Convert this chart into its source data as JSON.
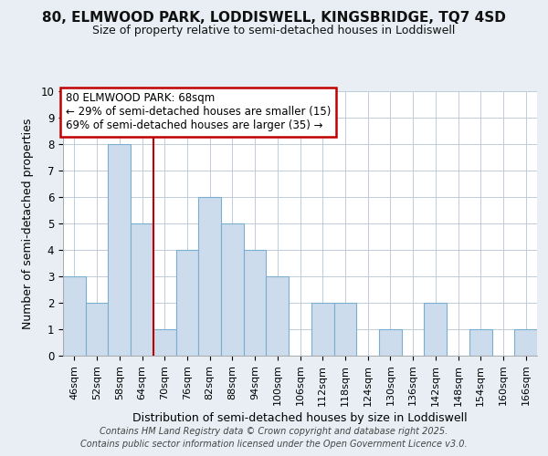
{
  "title": "80, ELMWOOD PARK, LODDISWELL, KINGSBRIDGE, TQ7 4SD",
  "subtitle": "Size of property relative to semi-detached houses in Loddiswell",
  "xlabel": "Distribution of semi-detached houses by size in Loddiswell",
  "ylabel": "Number of semi-detached properties",
  "bins": [
    "46sqm",
    "52sqm",
    "58sqm",
    "64sqm",
    "70sqm",
    "76sqm",
    "82sqm",
    "88sqm",
    "94sqm",
    "100sqm",
    "106sqm",
    "112sqm",
    "118sqm",
    "124sqm",
    "130sqm",
    "136sqm",
    "142sqm",
    "148sqm",
    "154sqm",
    "160sqm",
    "166sqm"
  ],
  "values": [
    3,
    2,
    8,
    5,
    1,
    4,
    6,
    5,
    4,
    3,
    0,
    2,
    2,
    0,
    1,
    0,
    2,
    0,
    1,
    0,
    1
  ],
  "bar_color": "#ccdcec",
  "bar_edge_color": "#7aaed0",
  "annotation_text": "80 ELMWOOD PARK: 68sqm\n← 29% of semi-detached houses are smaller (15)\n69% of semi-detached houses are larger (35) →",
  "vline_x": 3.5,
  "vline_color": "#c00000",
  "annotation_box_color": "#ffffff",
  "annotation_box_edge": "#c00000",
  "ylim": [
    0,
    10
  ],
  "yticks": [
    0,
    1,
    2,
    3,
    4,
    5,
    6,
    7,
    8,
    9,
    10
  ],
  "footer_line1": "Contains HM Land Registry data © Crown copyright and database right 2025.",
  "footer_line2": "Contains public sector information licensed under the Open Government Licence v3.0.",
  "background_color": "#e8eef4",
  "plot_background": "#ffffff",
  "grid_color": "#c0ccd8"
}
